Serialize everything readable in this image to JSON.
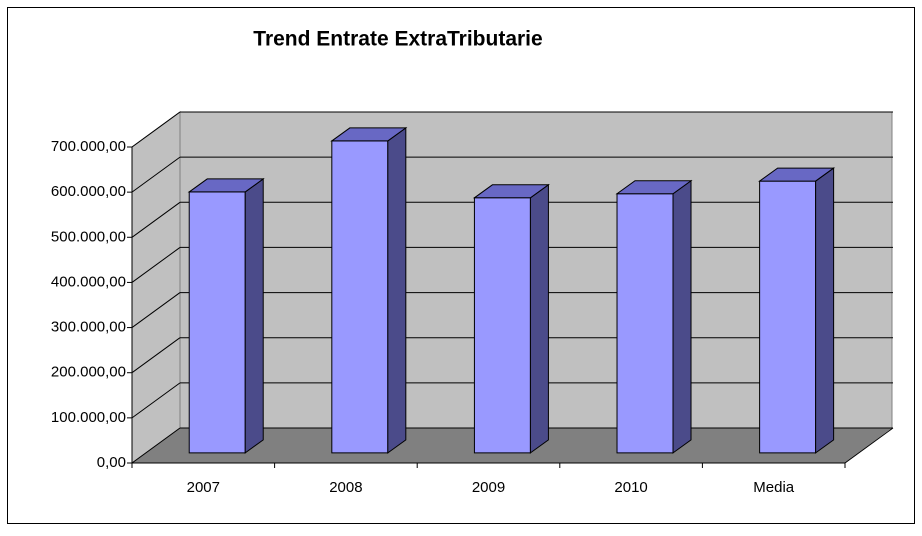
{
  "chart_data": {
    "type": "bar3d",
    "title": "Trend Entrate ExtraTributarie",
    "categories": [
      "2007",
      "2008",
      "2009",
      "2010",
      "Media"
    ],
    "values": [
      578000,
      691000,
      565000,
      574000,
      602000
    ],
    "color": "#9999ff",
    "ylim": [
      0,
      700000
    ],
    "yticks": [
      {
        "value": 0,
        "label": "0,00"
      },
      {
        "value": 100000,
        "label": "100.000,00"
      },
      {
        "value": 200000,
        "label": "200.000,00"
      },
      {
        "value": 300000,
        "label": "300.000,00"
      },
      {
        "value": 400000,
        "label": "400.000,00"
      },
      {
        "value": 500000,
        "label": "500.000,00"
      },
      {
        "value": 600000,
        "label": "600.000,00"
      },
      {
        "value": 700000,
        "label": "700.000,00"
      }
    ],
    "grid": true
  }
}
